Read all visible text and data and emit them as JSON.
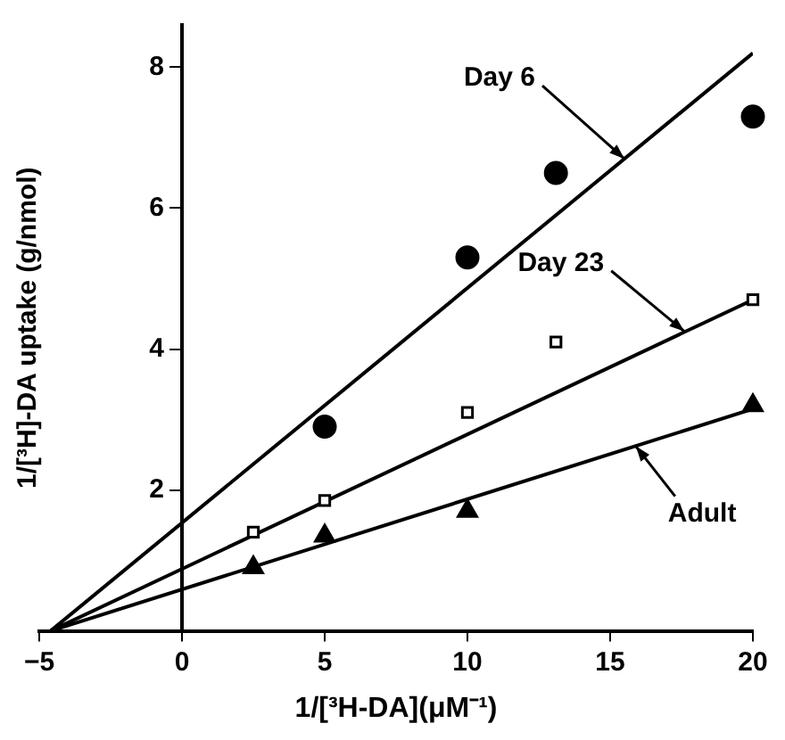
{
  "chart_data": {
    "type": "scatter",
    "xlabel": "1/[³H-DA](μM⁻¹)",
    "ylabel": "1/[³H]-DA uptake (g/nmol)",
    "xlim": [
      -5,
      20
    ],
    "xticks": [
      -5,
      0,
      5,
      10,
      15,
      20
    ],
    "ylim": [
      0,
      8.6
    ],
    "yticks": [
      2,
      4,
      6,
      8
    ],
    "grid": false,
    "legend": false,
    "series": [
      {
        "color": "#000000",
        "marker": "circle",
        "x": [
          5,
          10,
          13.1,
          20
        ],
        "values": [
          2.9,
          5.3,
          6.5,
          7.3
        ]
      },
      {
        "color": "#000000",
        "marker": "square",
        "x": [
          2.5,
          5,
          10,
          13.1,
          20
        ],
        "values": [
          1.4,
          1.85,
          3.1,
          4.1,
          4.7
        ]
      },
      {
        "color": "#000000",
        "marker": "triangle",
        "x": [
          2.5,
          5,
          10,
          20
        ],
        "values": [
          0.9,
          1.35,
          1.7,
          3.2
        ]
      },
      {
        "type": "line",
        "color": "#000000",
        "marker": "none",
        "line_style": "solid",
        "x": [
          -4.6,
          20
        ],
        "values": [
          0,
          8.2
        ]
      },
      {
        "type": "line",
        "color": "#000000",
        "marker": "none",
        "line_style": "solid",
        "x": [
          -4.6,
          20
        ],
        "values": [
          0,
          4.7
        ]
      },
      {
        "type": "line",
        "color": "#000000",
        "marker": "none",
        "line_style": "solid",
        "x": [
          -4.6,
          20
        ],
        "values": [
          0,
          3.15
        ]
      }
    ],
    "annotations": [
      {
        "text": "Day 6",
        "x": 15.5,
        "y": 6.7
      },
      {
        "text": "Day 23",
        "x": 17.6,
        "y": 4.25
      },
      {
        "text": "Adult",
        "x": 15.9,
        "y": 2.62
      }
    ]
  }
}
